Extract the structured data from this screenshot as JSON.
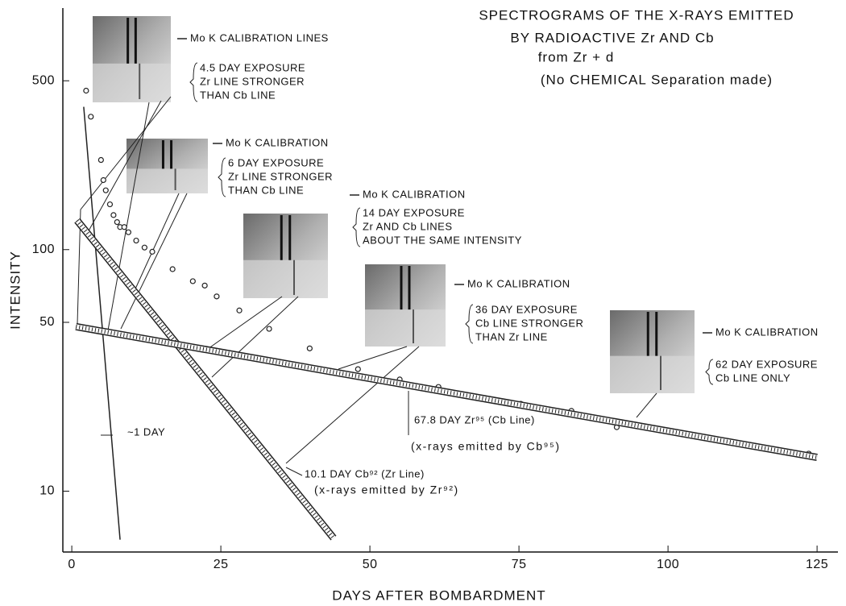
{
  "chart_data": {
    "type": "line",
    "title": [
      "SPECTROGRAMS OF THE X-RAYS EMITTED",
      "BY RADIOACTIVE Zr   AND Cb",
      "from Zr + d",
      "(No CHEMICAL Separation made)"
    ],
    "x_label": "DAYS AFTER BOMBARDMENT",
    "y_label": "INTENSITY",
    "log_y": true,
    "xlim": [
      -1.5,
      128.5
    ],
    "ylim": [
      5.6,
      1000
    ],
    "xticks": [
      0,
      25,
      50,
      75,
      100,
      125
    ],
    "yticks": [
      10,
      50,
      100,
      500
    ],
    "series": [
      {
        "style": "points",
        "color": "#222",
        "x": [
          2.4,
          3.2,
          4.9,
          5.3,
          5.7,
          6.4,
          7.0,
          7.6,
          8.1,
          8.8,
          9.5,
          10.8,
          12.2,
          13.5,
          16.9,
          20.3,
          22.3,
          24.3,
          28.1,
          33.1,
          39.9,
          48.0,
          55.0,
          61.5,
          75.3,
          83.8,
          91.4,
          106.1,
          113.5,
          123.6
        ],
        "values": [
          455,
          355,
          235,
          194,
          176,
          154,
          139,
          130,
          124,
          124,
          118,
          109,
          102,
          98,
          83,
          74,
          71,
          64,
          56,
          47,
          39,
          32,
          29,
          27,
          23,
          21.5,
          18.4,
          16.6,
          15.5,
          14.3
        ]
      },
      {
        "name": "~1 DAY",
        "style": "thin",
        "color": "#222",
        "x": [
          2.0,
          8.1
        ],
        "values": [
          390,
          6.3
        ]
      },
      {
        "name": "10.1 DAY Cb⁹² (Zr Line)",
        "sublabel": "(x-rays emitted by Zr⁹²)",
        "style": "band",
        "color": "#222",
        "x": [
          0.9,
          43.9
        ],
        "values": [
          132,
          6.4
        ]
      },
      {
        "name": "67.8 DAY Zr⁹⁵ (Cb Line)",
        "sublabel": "(x-rays emitted by Cb⁹⁵)",
        "style": "band",
        "color": "#222",
        "x": [
          0.7,
          125
        ],
        "values": [
          48,
          13.8
        ]
      }
    ],
    "annotations": [
      [
        "Mo K CALIBRATION LINES"
      ],
      [
        "4.5 DAY EXPOSURE",
        "Zr LINE STRONGER",
        "THAN Cb LINE"
      ],
      [
        "Mo K CALIBRATION"
      ],
      [
        "6 DAY EXPOSURE",
        "Zr LINE STRONGER",
        "THAN Cb LINE"
      ],
      [
        "Mo K CALIBRATION"
      ],
      [
        "14 DAY EXPOSURE",
        "Zr AND Cb LINES",
        "ABOUT THE SAME INTENSITY"
      ],
      [
        "Mo K CALIBRATION"
      ],
      [
        "36 DAY EXPOSURE",
        "Cb LINE STRONGER",
        "THAN Zr LINE"
      ],
      [
        "Mo K CALIBRATION"
      ],
      [
        "62 DAY EXPOSURE",
        "Cb LINE ONLY"
      ]
    ]
  }
}
